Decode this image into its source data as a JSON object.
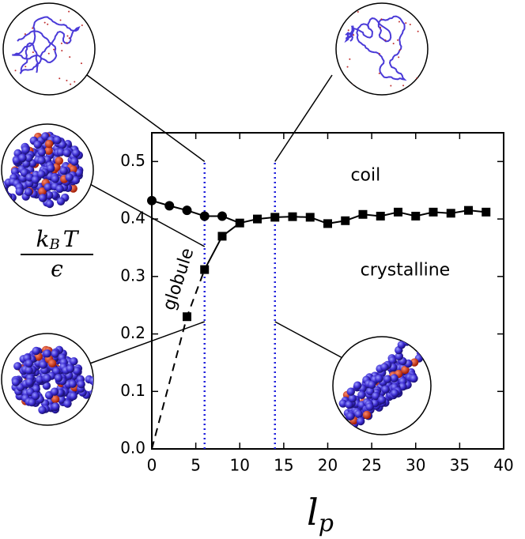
{
  "chart_data": {
    "type": "line",
    "xlim": [
      0,
      40
    ],
    "ylim": [
      0,
      0.55
    ],
    "xticks": [
      0,
      5,
      10,
      15,
      20,
      25,
      30,
      35,
      40
    ],
    "yticks": [
      {
        "value": 0,
        "label": "0.0"
      },
      0.1,
      0.2,
      0.3,
      0.4,
      0.5
    ],
    "xlabel": {
      "main": "l",
      "sub": "p"
    },
    "ylabel": {
      "numerator": "k",
      "sub": "B",
      "after": "T",
      "denominator": "ϵ"
    },
    "vlines": {
      "x": [
        6,
        14
      ],
      "top": 0.5,
      "color": "#2222dd"
    },
    "annotations": [
      {
        "text": "coil",
        "x": 24.3,
        "y": 0.475
      },
      {
        "text": "crystalline",
        "x": 28.8,
        "y": 0.31
      },
      {
        "text": "globule",
        "x": 3.1,
        "y": 0.295,
        "rotate": -72
      }
    ],
    "series": [
      {
        "color": "#000000",
        "marker": "circle",
        "linestyle": "solid",
        "x": [
          0,
          2,
          4,
          6,
          8
        ],
        "values": [
          0.432,
          0.423,
          0.415,
          0.405,
          0.405
        ]
      },
      {
        "color": "#000000",
        "marker": "none",
        "linestyle": "solid",
        "x": [
          8,
          10
        ],
        "values": [
          0.405,
          0.393
        ]
      },
      {
        "color": "#000000",
        "marker": "square",
        "linestyle": "solid",
        "x": [
          6,
          8,
          10,
          12,
          14,
          16,
          18,
          20,
          22,
          24,
          26,
          28,
          30,
          32,
          34,
          36,
          38
        ],
        "values": [
          0.312,
          0.37,
          0.393,
          0.4,
          0.403,
          0.404,
          0.403,
          0.392,
          0.397,
          0.408,
          0.405,
          0.412,
          0.405,
          0.412,
          0.41,
          0.415,
          0.412
        ]
      },
      {
        "color": "#000000",
        "marker": "none",
        "linestyle": "dashed",
        "x": [
          0,
          4,
          6
        ],
        "values": [
          0,
          0.23,
          0.312
        ]
      },
      {
        "color": "#000000",
        "marker": "square",
        "linestyle": "none",
        "x": [
          4
        ],
        "values": [
          0.23
        ]
      }
    ]
  }
}
